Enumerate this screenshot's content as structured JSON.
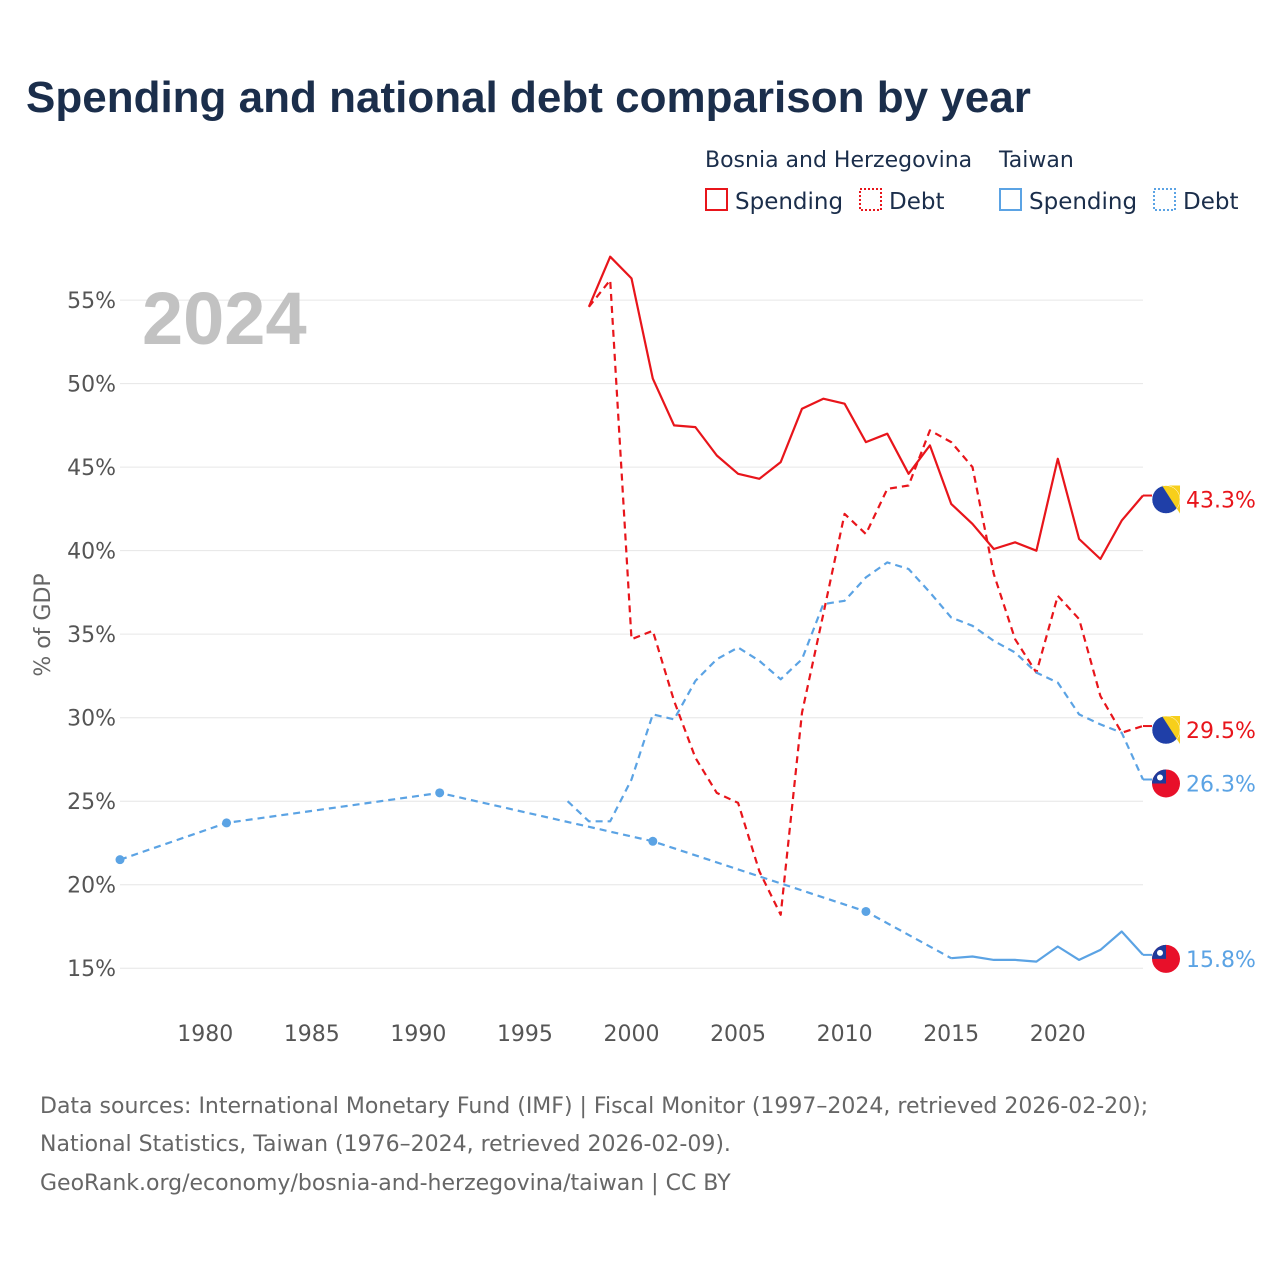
{
  "title": "Spending and national debt comparison by year",
  "year_label": "2024",
  "colors": {
    "bosnia": "#e8151b",
    "taiwan": "#5ba3e4"
  },
  "legend": {
    "groups": [
      {
        "name": "Bosnia and Herzegovina",
        "items": [
          "Spending",
          "Debt"
        ]
      },
      {
        "name": "Taiwan",
        "items": [
          "Spending",
          "Debt"
        ]
      }
    ]
  },
  "end_labels": {
    "bosnia_spending": "43.3%",
    "bosnia_debt": "29.5%",
    "taiwan_debt": "26.3%",
    "taiwan_spending": "15.8%"
  },
  "source_lines": [
    "Data sources: International Monetary Fund (IMF) | Fiscal Monitor (1997–2024, retrieved 2026-02-20);",
    "National Statistics, Taiwan (1976–2024, retrieved 2026-02-09).",
    "GeoRank.org/economy/bosnia-and-herzegovina/taiwan | CC BY"
  ],
  "chart_data": {
    "type": "line",
    "title": "Spending and national debt comparison by year",
    "xlabel": "",
    "ylabel": "% of GDP",
    "xlim": [
      1976,
      2024
    ],
    "ylim": [
      12.5,
      58
    ],
    "x_ticks": [
      1980,
      1985,
      1990,
      1995,
      2000,
      2005,
      2010,
      2015,
      2020
    ],
    "y_ticks": [
      15,
      20,
      25,
      30,
      35,
      40,
      45,
      50,
      55
    ],
    "y_tick_labels": [
      "15%",
      "20%",
      "25%",
      "30%",
      "35%",
      "40%",
      "45%",
      "50%",
      "55%"
    ],
    "x_tick_labels": [
      "1980",
      "1985",
      "1990",
      "1995",
      "2000",
      "2005",
      "2010",
      "2015",
      "2020"
    ],
    "series": [
      {
        "name": "Bosnia and Herzegovina Spending",
        "country": "Bosnia and Herzegovina",
        "measure": "Spending",
        "style": "solid",
        "color": "#e8151b",
        "x": [
          1998,
          1999,
          2000,
          2001,
          2002,
          2003,
          2004,
          2005,
          2006,
          2007,
          2008,
          2009,
          2010,
          2011,
          2012,
          2013,
          2014,
          2015,
          2016,
          2017,
          2018,
          2019,
          2020,
          2021,
          2022,
          2023,
          2024
        ],
        "values": [
          54.6,
          57.6,
          56.3,
          50.3,
          47.5,
          47.4,
          45.7,
          44.6,
          44.3,
          45.3,
          48.5,
          49.1,
          48.8,
          46.5,
          47.0,
          44.6,
          46.3,
          42.8,
          41.6,
          40.1,
          40.5,
          40.0,
          45.5,
          40.7,
          39.5,
          41.8,
          43.3
        ]
      },
      {
        "name": "Bosnia and Herzegovina Debt",
        "country": "Bosnia and Herzegovina",
        "measure": "Debt",
        "style": "dashed",
        "color": "#e8151b",
        "x": [
          1998,
          1999,
          2000,
          2001,
          2002,
          2003,
          2004,
          2005,
          2006,
          2007,
          2008,
          2009,
          2010,
          2011,
          2012,
          2013,
          2014,
          2015,
          2016,
          2017,
          2018,
          2019,
          2020,
          2021,
          2022,
          2023,
          2024
        ],
        "values": [
          54.6,
          56.2,
          34.7,
          35.2,
          31.0,
          27.6,
          25.5,
          24.9,
          20.8,
          18.2,
          30.3,
          36.2,
          42.2,
          41.0,
          43.7,
          43.9,
          47.2,
          46.5,
          45.0,
          38.6,
          34.7,
          32.7,
          37.3,
          35.9,
          31.3,
          29.1,
          29.5
        ]
      },
      {
        "name": "Taiwan Spending",
        "country": "Taiwan",
        "measure": "Spending",
        "style": "solid",
        "color": "#5ba3e4",
        "x": [
          2015,
          2016,
          2017,
          2018,
          2019,
          2020,
          2021,
          2022,
          2023,
          2024
        ],
        "values": [
          15.6,
          15.7,
          15.5,
          15.5,
          15.4,
          16.3,
          15.5,
          16.1,
          17.2,
          15.8
        ]
      },
      {
        "name": "Taiwan Debt",
        "country": "Taiwan",
        "measure": "Debt",
        "style": "dashed",
        "color": "#5ba3e4",
        "x": [
          1997,
          1998,
          1999,
          2000,
          2001,
          2002,
          2003,
          2004,
          2005,
          2006,
          2007,
          2008,
          2009,
          2010,
          2011,
          2012,
          2013,
          2014,
          2015,
          2016,
          2017,
          2018,
          2019,
          2020,
          2021,
          2022,
          2023,
          2024
        ],
        "values": [
          25.0,
          23.8,
          23.8,
          26.3,
          30.2,
          29.9,
          32.2,
          33.5,
          34.2,
          33.4,
          32.3,
          33.5,
          36.8,
          37.0,
          38.4,
          39.3,
          38.9,
          37.5,
          36.0,
          35.5,
          34.6,
          33.9,
          32.7,
          32.1,
          30.2,
          29.6,
          29.1,
          26.3
        ]
      },
      {
        "name": "Taiwan Spending (sparse observations)",
        "country": "Taiwan",
        "measure": "Spending",
        "style": "dashed-markers",
        "color": "#5ba3e4",
        "x": [
          1976,
          1981,
          1991,
          2001,
          2011,
          2015
        ],
        "values": [
          21.5,
          23.7,
          25.5,
          22.6,
          18.4,
          15.6
        ]
      }
    ]
  }
}
